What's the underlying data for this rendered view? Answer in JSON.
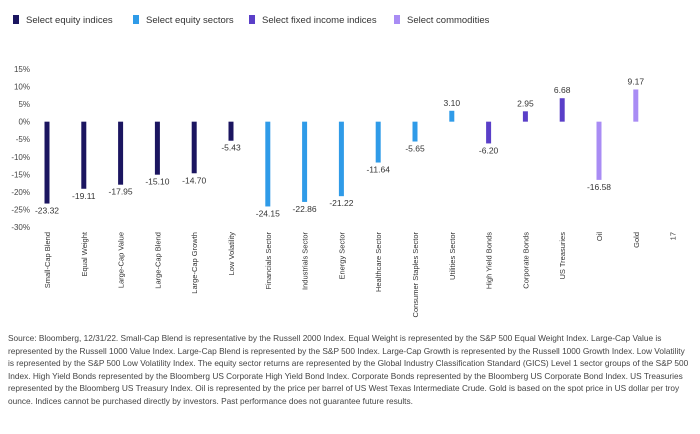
{
  "chart_data": {
    "type": "bar",
    "legend_position": "top-left",
    "groups": [
      {
        "name": "Select equity indices",
        "color": "#1b1560"
      },
      {
        "name": "Select equity sectors",
        "color": "#2f9be8"
      },
      {
        "name": "Select fixed income indices",
        "color": "#5a3fc8"
      },
      {
        "name": "Select commodities",
        "color": "#a98cf4"
      }
    ],
    "categories": [
      "Small-Cap Blend",
      "Equal Weight",
      "Large-Cap Value",
      "Large-Cap Blend",
      "Large-Cap Growth",
      "Low Volatility",
      "Financials Sector",
      "Industrials Sector",
      "Energy Sector",
      "Healthcare Sector",
      "Consumer Staples Sector",
      "Utilities Sector",
      "High Yield Bonds",
      "Corporate Bonds",
      "US Treasuries",
      "Oil",
      "Gold",
      "17"
    ],
    "values": [
      -23.32,
      -19.11,
      -17.95,
      -15.1,
      -14.7,
      -5.43,
      -24.15,
      -22.86,
      -21.22,
      -11.64,
      -5.65,
      3.1,
      -6.2,
      2.95,
      6.68,
      -16.58,
      9.17,
      null
    ],
    "value_labels": [
      "-23.32",
      "-19.11",
      "-17.95",
      "-15.10",
      "-14.70",
      "-5.43",
      "-24.15",
      "-22.86",
      "-21.22",
      "-11.64",
      "-5.65",
      "3.10",
      "-6.20",
      "2.95",
      "6.68",
      "-16.58",
      "9.17",
      ""
    ],
    "group_index": [
      0,
      0,
      0,
      0,
      0,
      0,
      1,
      1,
      1,
      1,
      1,
      1,
      2,
      2,
      2,
      3,
      3,
      -1
    ],
    "y_ticks": [
      "15%",
      "10%",
      "5%",
      "0%",
      "-5%",
      "-10%",
      "-15%",
      "-20%",
      "-25%",
      "-30%"
    ],
    "ylim": [
      -30,
      15
    ],
    "grid": false
  },
  "source_note": "Source: Bloomberg, 12/31/22. Small-Cap Blend is representative by the Russell 2000 Index. Equal Weight is represented by the S&P 500 Equal Weight Index. Large-Cap Value is represented by the Russell 1000 Value Index.  Large-Cap Blend is represented by the S&P 500 Index. Large-Cap Growth is represented by the Russell 1000 Growth Index. Low Volatility is represented by the S&P 500 Low Volatility Index. The equity sector returns are represented by the Global Industry Classification Standard (GICS) Level 1 sector groups of the S&P 500 Index. High Yield Bonds represented by the Bloomberg US Corporate High Yield Bond Index. Corporate Bonds represented by the Bloomberg US Corporate Bond Index. US Treasuries represented by the Bloomberg US Treasury Index. Oil is represented by the price per barrel of US West Texas Intermediate Crude. Gold is based on the spot price in US dollar per troy ounce. Indices cannot be purchased directly by investors. Past performance does not guarantee future results."
}
